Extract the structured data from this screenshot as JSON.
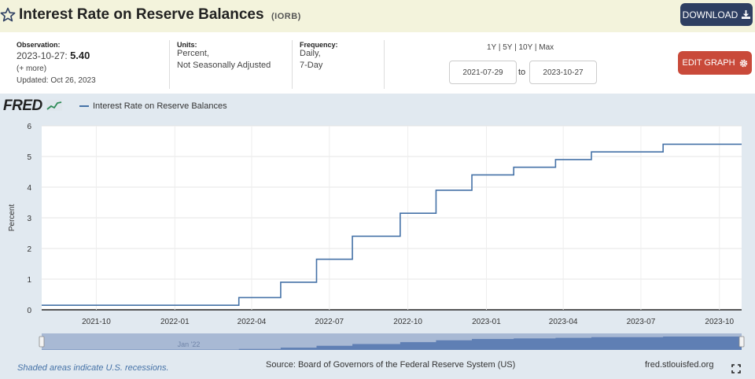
{
  "header": {
    "title": "Interest Rate on Reserve Balances",
    "code": "(IORB)",
    "download_label": "DOWNLOAD",
    "download_icon": "download-icon",
    "star_icon": "star-icon"
  },
  "info": {
    "observation_label": "Observation:",
    "observation_date": "2023-10-27:",
    "observation_value": "5.40",
    "more": "(+ more)",
    "updated": "Updated: Oct 26, 2023",
    "units_label": "Units:",
    "units_line1": "Percent,",
    "units_line2": "Not Seasonally Adjusted",
    "frequency_label": "Frequency:",
    "frequency_line1": "Daily,",
    "frequency_line2": "7-Day",
    "range_1y": "1Y",
    "range_5y": "5Y",
    "range_10y": "10Y",
    "range_max": "Max",
    "range_sep": "|",
    "start_date": "2021-07-29",
    "to_label": "to",
    "end_date": "2023-10-27",
    "edit_label": "EDIT GRAPH",
    "edit_icon": "gear-icon"
  },
  "chart_data": {
    "type": "line",
    "logo": "FRED",
    "title": "",
    "series": [
      {
        "name": "Interest Rate on Reserve Balances",
        "color": "#4572a7",
        "step": true,
        "points": [
          [
            "2021-07-29",
            0.15
          ],
          [
            "2022-03-17",
            0.4
          ],
          [
            "2022-05-05",
            0.9
          ],
          [
            "2022-06-16",
            1.65
          ],
          [
            "2022-07-28",
            2.4
          ],
          [
            "2022-09-22",
            3.15
          ],
          [
            "2022-11-03",
            3.9
          ],
          [
            "2022-12-15",
            4.4
          ],
          [
            "2023-02-02",
            4.65
          ],
          [
            "2023-03-23",
            4.9
          ],
          [
            "2023-05-04",
            5.15
          ],
          [
            "2023-07-27",
            5.4
          ],
          [
            "2023-10-27",
            5.4
          ]
        ]
      }
    ],
    "xlim": [
      "2021-07-29",
      "2023-10-27"
    ],
    "x_ticks": [
      "2021-10",
      "2022-01",
      "2022-04",
      "2022-07",
      "2022-10",
      "2023-01",
      "2023-04",
      "2023-07",
      "2023-10"
    ],
    "ylim": [
      0,
      6
    ],
    "y_ticks": [
      0,
      1,
      2,
      3,
      4,
      5,
      6
    ],
    "ylabel": "Percent",
    "xlabel": "",
    "grid": true,
    "legend": "top-left",
    "navigator_label": "Jan '22"
  },
  "footer": {
    "recessions_note": "Shaded areas indicate U.S. recessions.",
    "source": "Source: Board of Governors of the Federal Reserve System (US)",
    "site": "fred.stlouisfed.org",
    "fullscreen_icon": "fullscreen-icon"
  }
}
